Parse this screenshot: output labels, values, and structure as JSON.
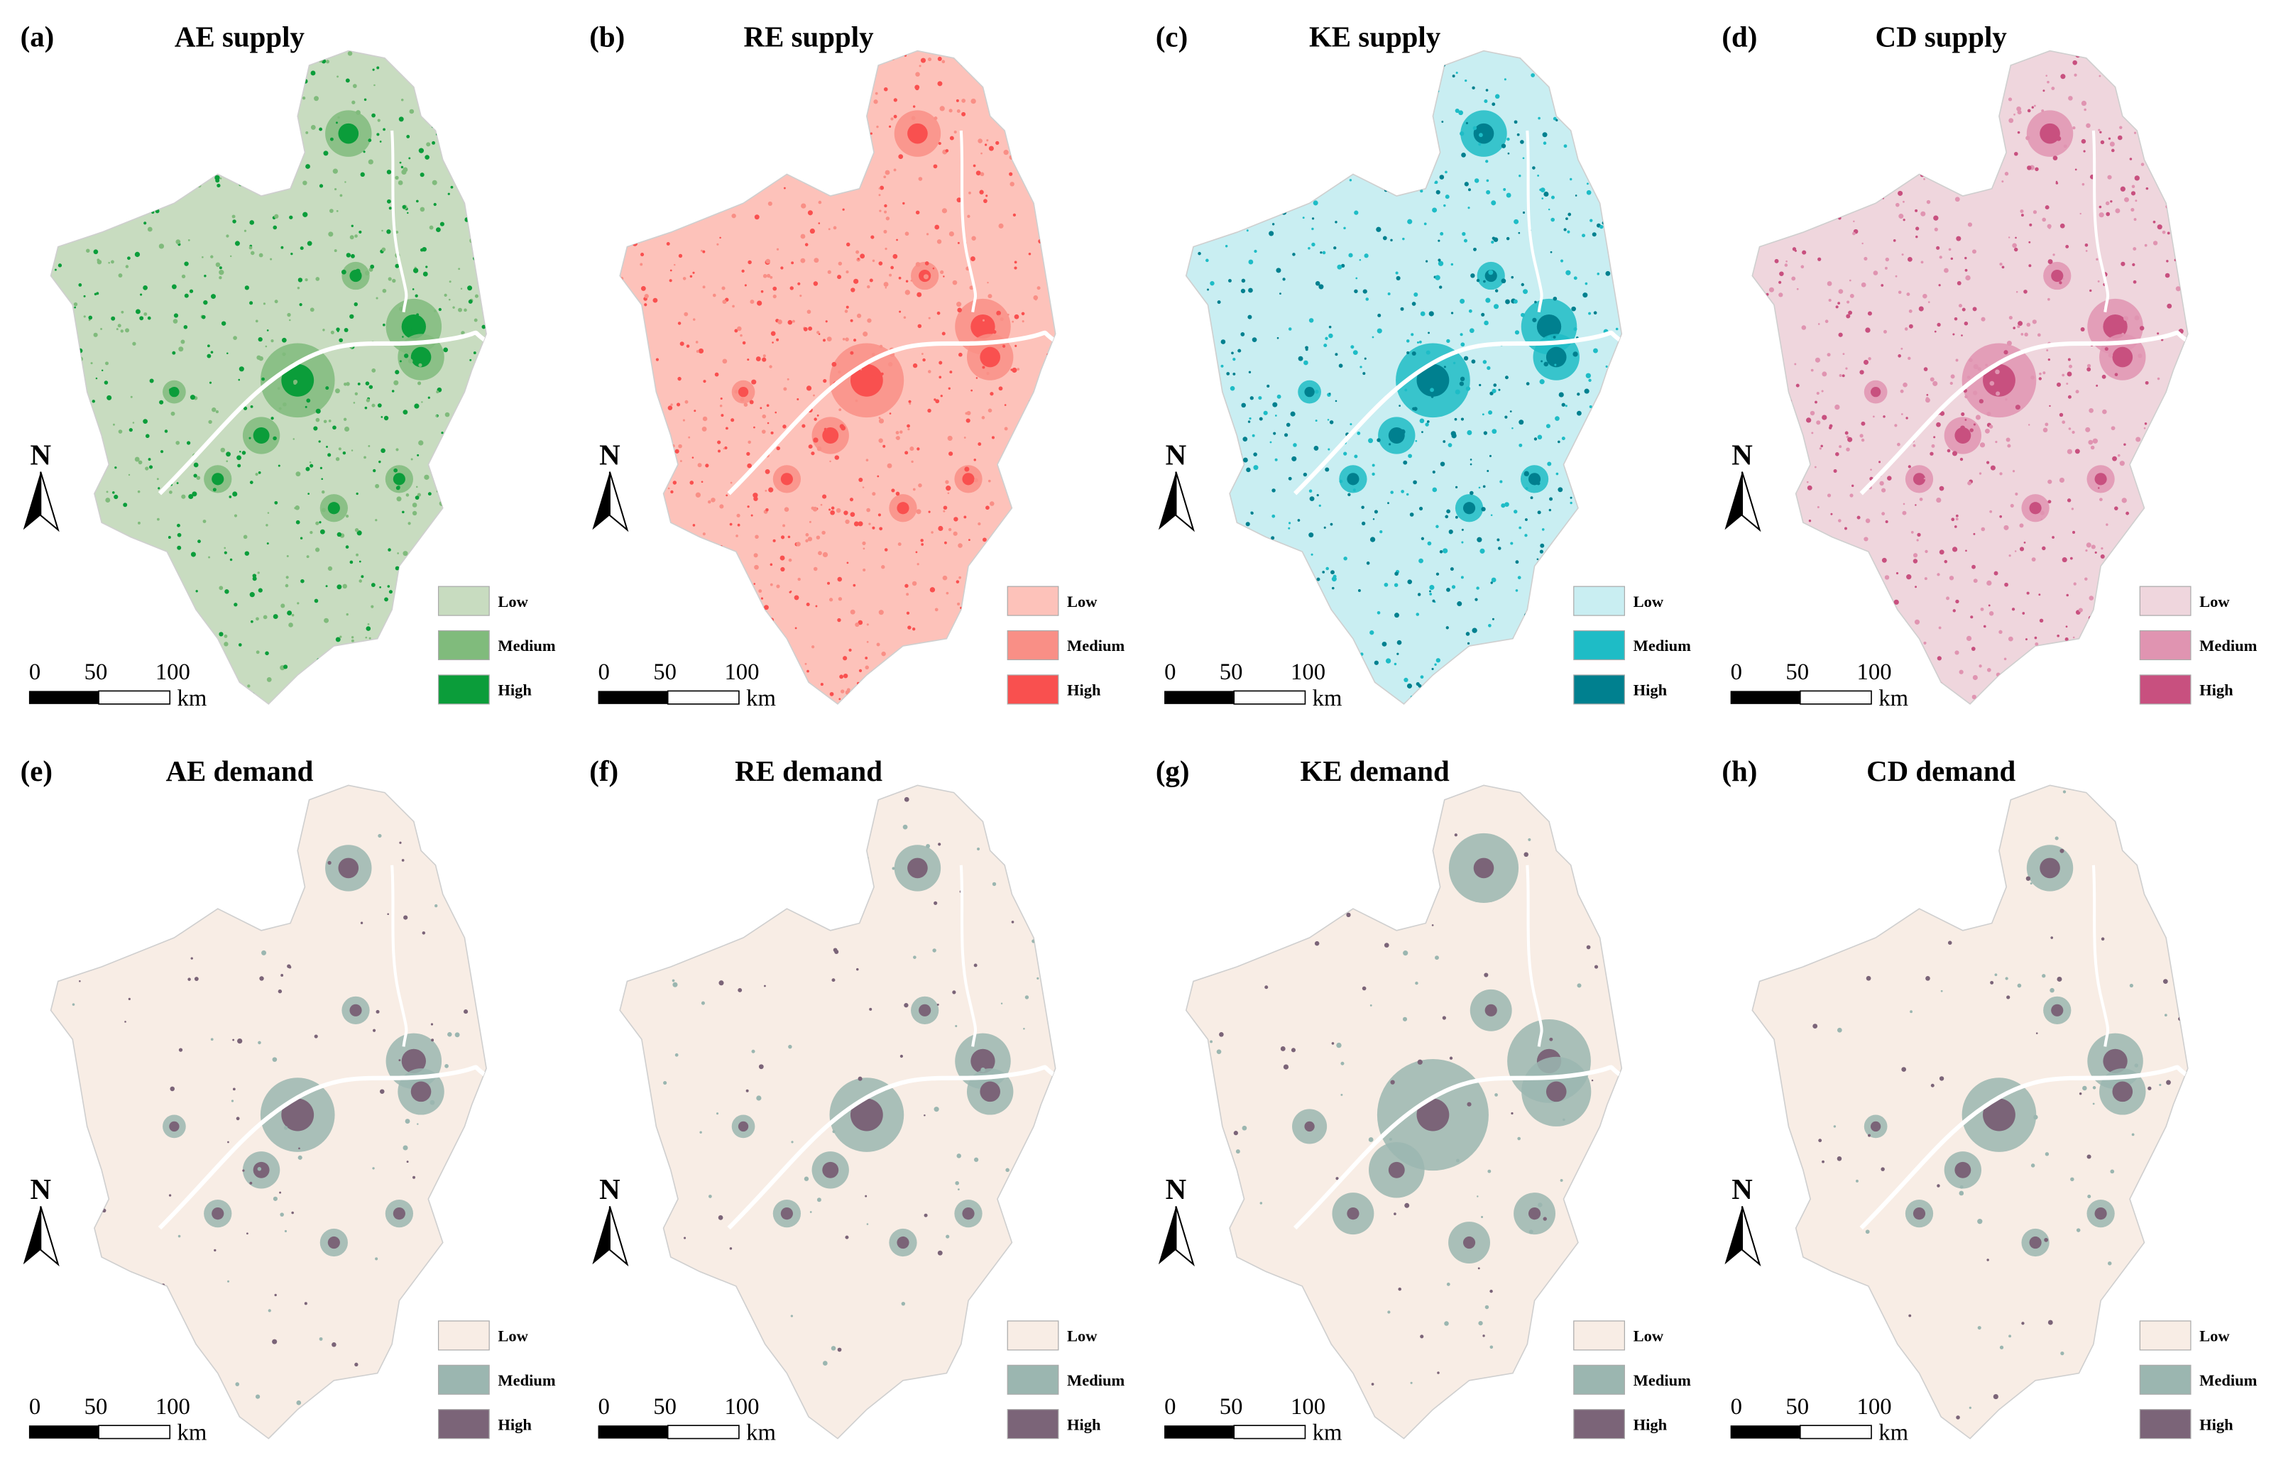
{
  "panels": [
    {
      "label": "(a)",
      "title": "AE supply",
      "colors": [
        "#c8dcc0",
        "#80bb7c",
        "#0b9d3a"
      ]
    },
    {
      "label": "(b)",
      "title": "RE supply",
      "colors": [
        "#fdc2ba",
        "#f98f86",
        "#f9504f"
      ]
    },
    {
      "label": "(c)",
      "title": "KE supply",
      "colors": [
        "#c9eef2",
        "#1ebcc6",
        "#00808f"
      ]
    },
    {
      "label": "(d)",
      "title": "CD supply",
      "colors": [
        "#efd6dd",
        "#e094b1",
        "#c8507f"
      ]
    },
    {
      "label": "(e)",
      "title": "AE demand",
      "colors": [
        "#f8ede5",
        "#9bb6b0",
        "#7b6478"
      ]
    },
    {
      "label": "(f)",
      "title": "RE demand",
      "colors": [
        "#f8ede5",
        "#9bb6b0",
        "#7b6478"
      ]
    },
    {
      "label": "(g)",
      "title": "KE demand",
      "colors": [
        "#f8ede5",
        "#9bb6b0",
        "#7b6478"
      ]
    },
    {
      "label": "(h)",
      "title": "CD demand",
      "colors": [
        "#f8ede5",
        "#9bb6b0",
        "#7b6478"
      ]
    }
  ],
  "legend_labels": [
    "Low",
    "Medium",
    "High"
  ],
  "scale_bar": {
    "ticks": [
      0,
      50,
      100
    ],
    "unit": "km"
  },
  "north": "N"
}
